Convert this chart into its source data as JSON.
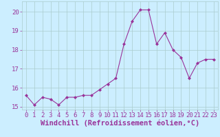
{
  "x": [
    0,
    1,
    2,
    3,
    4,
    5,
    6,
    7,
    8,
    9,
    10,
    11,
    12,
    13,
    14,
    15,
    16,
    17,
    18,
    19,
    20,
    21,
    22,
    23
  ],
  "y": [
    15.6,
    15.1,
    15.5,
    15.4,
    15.1,
    15.5,
    15.5,
    15.6,
    15.6,
    15.9,
    16.2,
    16.5,
    18.3,
    19.5,
    20.1,
    20.1,
    18.3,
    18.9,
    18.0,
    17.6,
    16.5,
    17.3,
    17.5,
    17.5
  ],
  "xlim": [
    -0.5,
    23.5
  ],
  "ylim": [
    14.85,
    20.55
  ],
  "yticks": [
    15,
    16,
    17,
    18,
    19,
    20
  ],
  "xticks": [
    0,
    1,
    2,
    3,
    4,
    5,
    6,
    7,
    8,
    9,
    10,
    11,
    12,
    13,
    14,
    15,
    16,
    17,
    18,
    19,
    20,
    21,
    22,
    23
  ],
  "xlabel": "Windchill (Refroidissement éolien,°C)",
  "line_color": "#993399",
  "marker": "D",
  "marker_size": 2.0,
  "marker_color": "#993399",
  "background_color": "#cceeff",
  "grid_color": "#aacccc",
  "tick_label_fontsize": 6.5,
  "xlabel_fontsize": 7.5
}
